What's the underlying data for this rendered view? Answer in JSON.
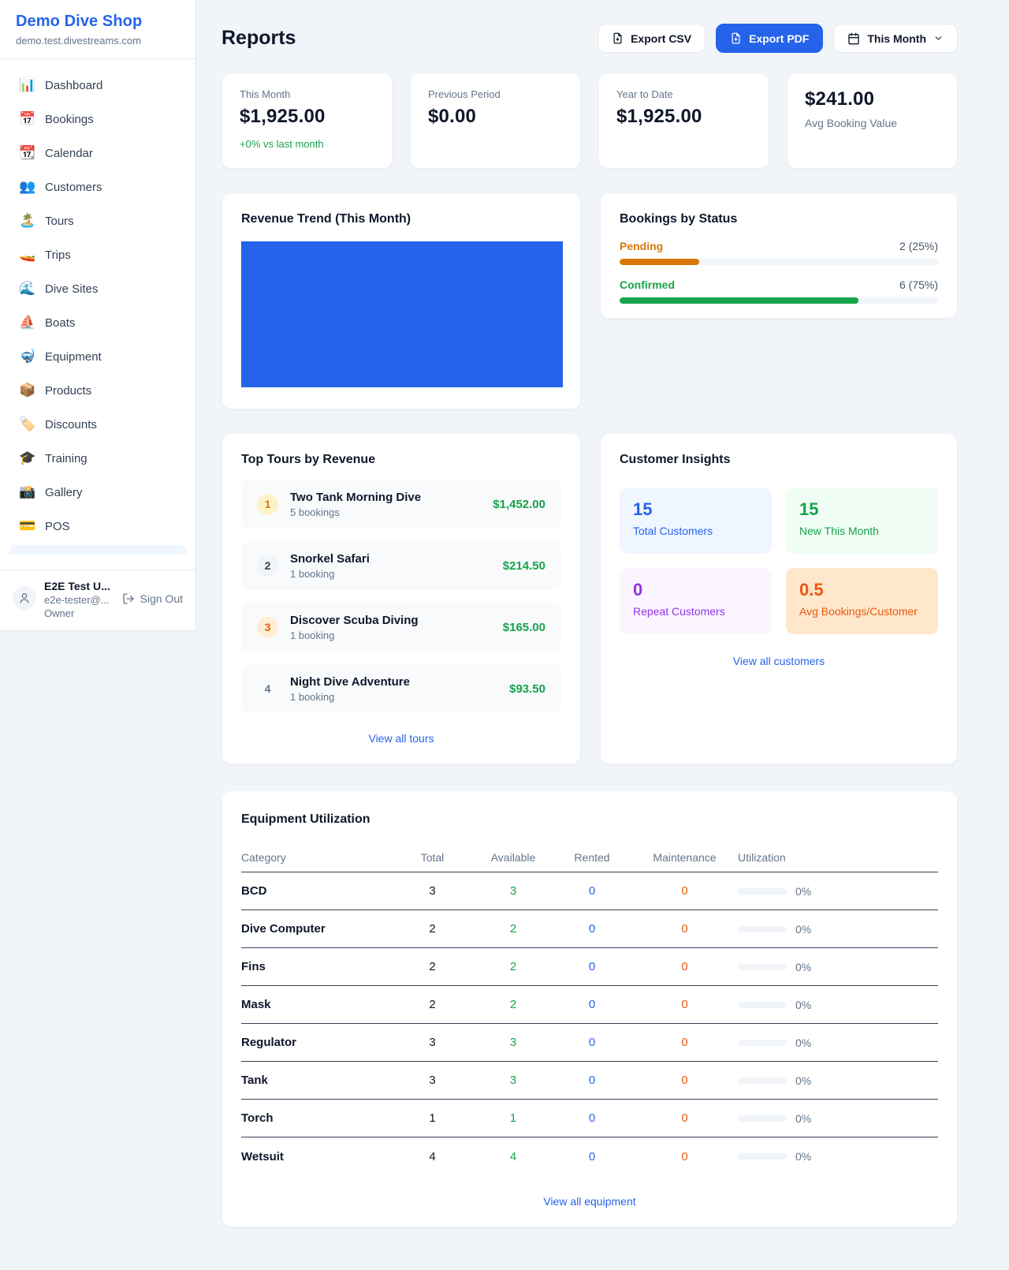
{
  "colors": {
    "accent_blue": "#2563eb",
    "success_green": "#16a34a",
    "pending_orange": "#d97706",
    "maintenance_orange": "#ea580c",
    "purple": "#9333ea",
    "muted_gray": "#64748b",
    "page_background": "#f1f5f9"
  },
  "sidebar": {
    "shop_name": "Demo Dive Shop",
    "shop_domain": "demo.test.divestreams.com",
    "items": [
      {
        "icon": "📊",
        "label": "Dashboard"
      },
      {
        "icon": "📅",
        "label": "Bookings"
      },
      {
        "icon": "📆",
        "label": "Calendar"
      },
      {
        "icon": "👥",
        "label": "Customers"
      },
      {
        "icon": "🏝️",
        "label": "Tours"
      },
      {
        "icon": "🚤",
        "label": "Trips"
      },
      {
        "icon": "🌊",
        "label": "Dive Sites"
      },
      {
        "icon": "⛵",
        "label": "Boats"
      },
      {
        "icon": "🤿",
        "label": "Equipment"
      },
      {
        "icon": "📦",
        "label": "Products"
      },
      {
        "icon": "🏷️",
        "label": "Discounts"
      },
      {
        "icon": "🎓",
        "label": "Training"
      },
      {
        "icon": "📸",
        "label": "Gallery"
      },
      {
        "icon": "💳",
        "label": "POS"
      }
    ],
    "user": {
      "name": "E2E Test U...",
      "email": "e2e-tester@...",
      "role": "Owner",
      "sign_out_label": "Sign Out"
    }
  },
  "header": {
    "title": "Reports",
    "export_csv_label": "Export CSV",
    "export_pdf_label": "Export PDF",
    "period_label": "This Month"
  },
  "stats": [
    {
      "label": "This Month",
      "value": "$1,925.00",
      "delta": "+0% vs last month"
    },
    {
      "label": "Previous Period",
      "value": "$0.00"
    },
    {
      "label": "Year to Date",
      "value": "$1,925.00"
    },
    {
      "label": "Avg Booking Value",
      "value": "$241.00"
    }
  ],
  "revenue_trend": {
    "title": "Revenue Trend (This Month)",
    "chart_color": "#2563eb"
  },
  "bookings_by_status": {
    "title": "Bookings by Status",
    "rows": [
      {
        "label": "Pending",
        "count_text": "2 (25%)",
        "count": 2,
        "percent": "25%"
      },
      {
        "label": "Confirmed",
        "count_text": "6 (75%)",
        "count": 6,
        "percent": "75%"
      }
    ]
  },
  "top_tours": {
    "title": "Top Tours by Revenue",
    "rows": [
      {
        "rank": "1",
        "name": "Two Tank Morning Dive",
        "bookings": "5 bookings",
        "revenue": "$1,452.00"
      },
      {
        "rank": "2",
        "name": "Snorkel Safari",
        "bookings": "1 booking",
        "revenue": "$214.50"
      },
      {
        "rank": "3",
        "name": "Discover Scuba Diving",
        "bookings": "1 booking",
        "revenue": "$165.00"
      },
      {
        "rank": "4",
        "name": "Night Dive Adventure",
        "bookings": "1 booking",
        "revenue": "$93.50"
      }
    ],
    "view_all_label": "View all tours"
  },
  "customer_insights": {
    "title": "Customer Insights",
    "boxes": [
      {
        "value": "15",
        "label": "Total Customers"
      },
      {
        "value": "15",
        "label": "New This Month"
      },
      {
        "value": "0",
        "label": "Repeat Customers"
      },
      {
        "value": "0.5",
        "label": "Avg Bookings/Customer"
      }
    ],
    "view_all_label": "View all customers"
  },
  "equipment": {
    "title": "Equipment Utilization",
    "columns": [
      "Category",
      "Total",
      "Available",
      "Rented",
      "Maintenance",
      "Utilization"
    ],
    "rows": [
      {
        "category": "BCD",
        "total": "3",
        "available": "3",
        "rented": "0",
        "maintenance": "0",
        "utilization": "0%"
      },
      {
        "category": "Dive Computer",
        "total": "2",
        "available": "2",
        "rented": "0",
        "maintenance": "0",
        "utilization": "0%"
      },
      {
        "category": "Fins",
        "total": "2",
        "available": "2",
        "rented": "0",
        "maintenance": "0",
        "utilization": "0%"
      },
      {
        "category": "Mask",
        "total": "2",
        "available": "2",
        "rented": "0",
        "maintenance": "0",
        "utilization": "0%"
      },
      {
        "category": "Regulator",
        "total": "3",
        "available": "3",
        "rented": "0",
        "maintenance": "0",
        "utilization": "0%"
      },
      {
        "category": "Tank",
        "total": "3",
        "available": "3",
        "rented": "0",
        "maintenance": "0",
        "utilization": "0%"
      },
      {
        "category": "Torch",
        "total": "1",
        "available": "1",
        "rented": "0",
        "maintenance": "0",
        "utilization": "0%"
      },
      {
        "category": "Wetsuit",
        "total": "4",
        "available": "4",
        "rented": "0",
        "maintenance": "0",
        "utilization": "0%"
      }
    ],
    "view_all_label": "View all equipment"
  }
}
